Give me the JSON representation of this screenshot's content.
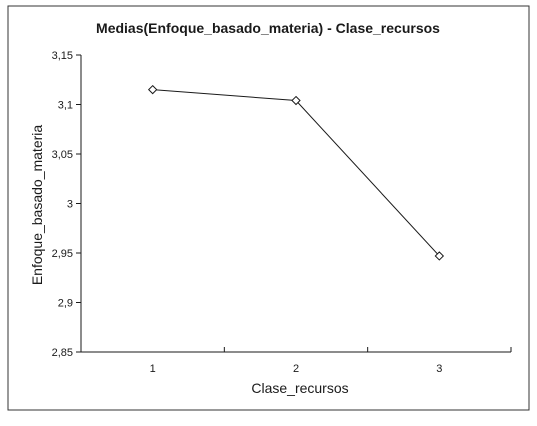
{
  "chart_data": {
    "type": "line",
    "title": "Medias(Enfoque_basado_materia) - Clase_recursos",
    "xlabel": "Clase_recursos",
    "ylabel": "Enfoque_basado_materia",
    "categories": [
      "1",
      "2",
      "3"
    ],
    "values": [
      3.115,
      3.104,
      2.947
    ],
    "ylim": [
      2.85,
      3.15
    ],
    "yticks": [
      "3,15",
      "3,1",
      "3,05",
      "3",
      "2,95",
      "2,9",
      "2,85"
    ],
    "grid": false,
    "marker": "diamond",
    "line_color": "#1a1a1a"
  }
}
